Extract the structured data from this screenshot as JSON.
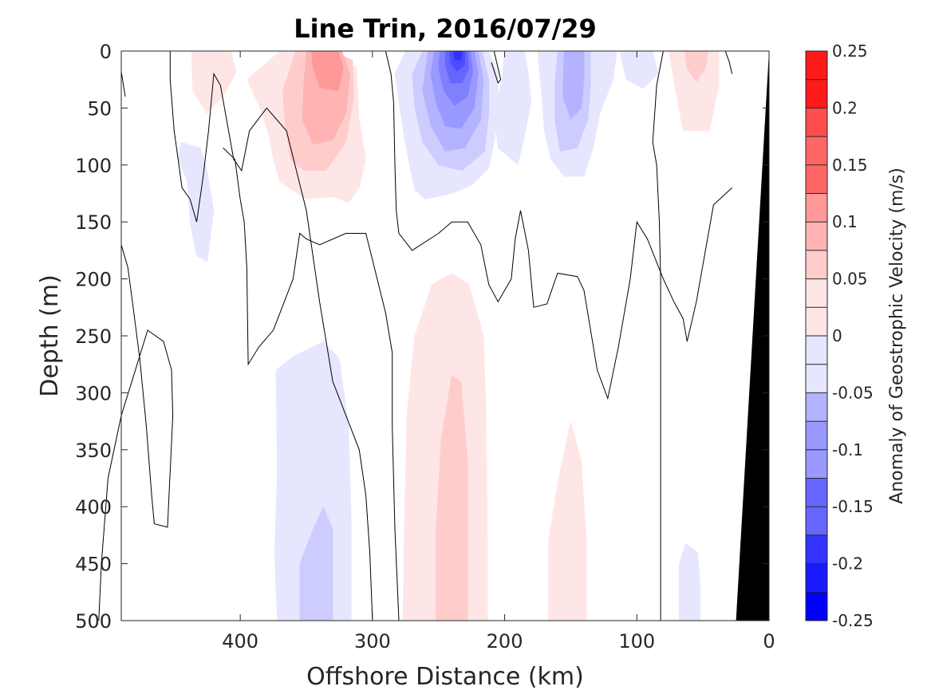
{
  "chart_data": {
    "type": "contourf",
    "title": "Line Trin, 2016/07/29",
    "xlabel": "Offshore Distance (km)",
    "ylabel": "Depth (m)",
    "x_reversed": true,
    "y_reversed": true,
    "xlim": [
      0,
      490
    ],
    "ylim": [
      0,
      500
    ],
    "xticks": [
      400,
      300,
      200,
      100,
      0
    ],
    "yticks": [
      0,
      50,
      100,
      150,
      200,
      250,
      300,
      350,
      400,
      450,
      500
    ],
    "colorbar": {
      "label": "Anomaly of Geostrophic Velocity (m/s)",
      "range": [
        -0.25,
        0.25
      ],
      "ticks": [
        0.25,
        0.2,
        0.15,
        0.1,
        0.05,
        0,
        -0.05,
        -0.1,
        -0.15,
        -0.2,
        -0.25
      ],
      "levels": [
        0.25,
        0.225,
        0.2,
        0.175,
        0.15,
        0.125,
        0.1,
        0.075,
        0.05,
        0.025,
        0,
        -0.025,
        -0.05,
        -0.075,
        -0.1,
        -0.125,
        -0.15,
        -0.175,
        -0.2,
        -0.225,
        -0.25
      ],
      "colors": [
        "#ff0000",
        "#ff1a1a",
        "#ff3333",
        "#ff4d4d",
        "#ff6666",
        "#ff8080",
        "#ff9999",
        "#ffb3b3",
        "#ffcccc",
        "#ffe6e6",
        "#ffffff",
        "#e6e6ff",
        "#ccccff",
        "#b3b3ff",
        "#9999ff",
        "#8080ff",
        "#6666ff",
        "#4d4dff",
        "#3333ff",
        "#1a1aff",
        "#0000ff"
      ]
    },
    "features": [
      {
        "kind": "positive_core",
        "x_center_km": 335,
        "depth_range_m": [
          0,
          135
        ],
        "peak_value": 0.1
      },
      {
        "kind": "positive",
        "x_center_km": 430,
        "depth_range_m": [
          0,
          50
        ],
        "peak_value": 0.05
      },
      {
        "kind": "positive",
        "x_center_km": 55,
        "depth_range_m": [
          0,
          70
        ],
        "peak_value": 0.05
      },
      {
        "kind": "negative_core",
        "x_center_km": 235,
        "depth_range_m": [
          0,
          130
        ],
        "peak_value": -0.2
      },
      {
        "kind": "negative",
        "x_center_km": 150,
        "depth_range_m": [
          0,
          110
        ],
        "peak_value": -0.075
      },
      {
        "kind": "negative",
        "x_center_km": 195,
        "depth_range_m": [
          0,
          100
        ],
        "peak_value": -0.025
      },
      {
        "kind": "negative",
        "x_center_km": 430,
        "depth_range_m": [
          80,
          185
        ],
        "peak_value": -0.025
      },
      {
        "kind": "negative",
        "x_center_km": 100,
        "depth_range_m": [
          0,
          35
        ],
        "peak_value": -0.025
      },
      {
        "kind": "negative",
        "x_center_km": 340,
        "depth_range_m": [
          250,
          500
        ],
        "peak_value": -0.05
      },
      {
        "kind": "positive",
        "x_center_km": 240,
        "depth_range_m": [
          195,
          500
        ],
        "peak_value": 0.05
      },
      {
        "kind": "positive",
        "x_center_km": 150,
        "depth_range_m": [
          320,
          500
        ],
        "peak_value": 0.025
      },
      {
        "kind": "negative",
        "x_center_km": 55,
        "depth_range_m": [
          430,
          500
        ],
        "peak_value": -0.025
      }
    ],
    "bathymetry_color": "#000000"
  }
}
